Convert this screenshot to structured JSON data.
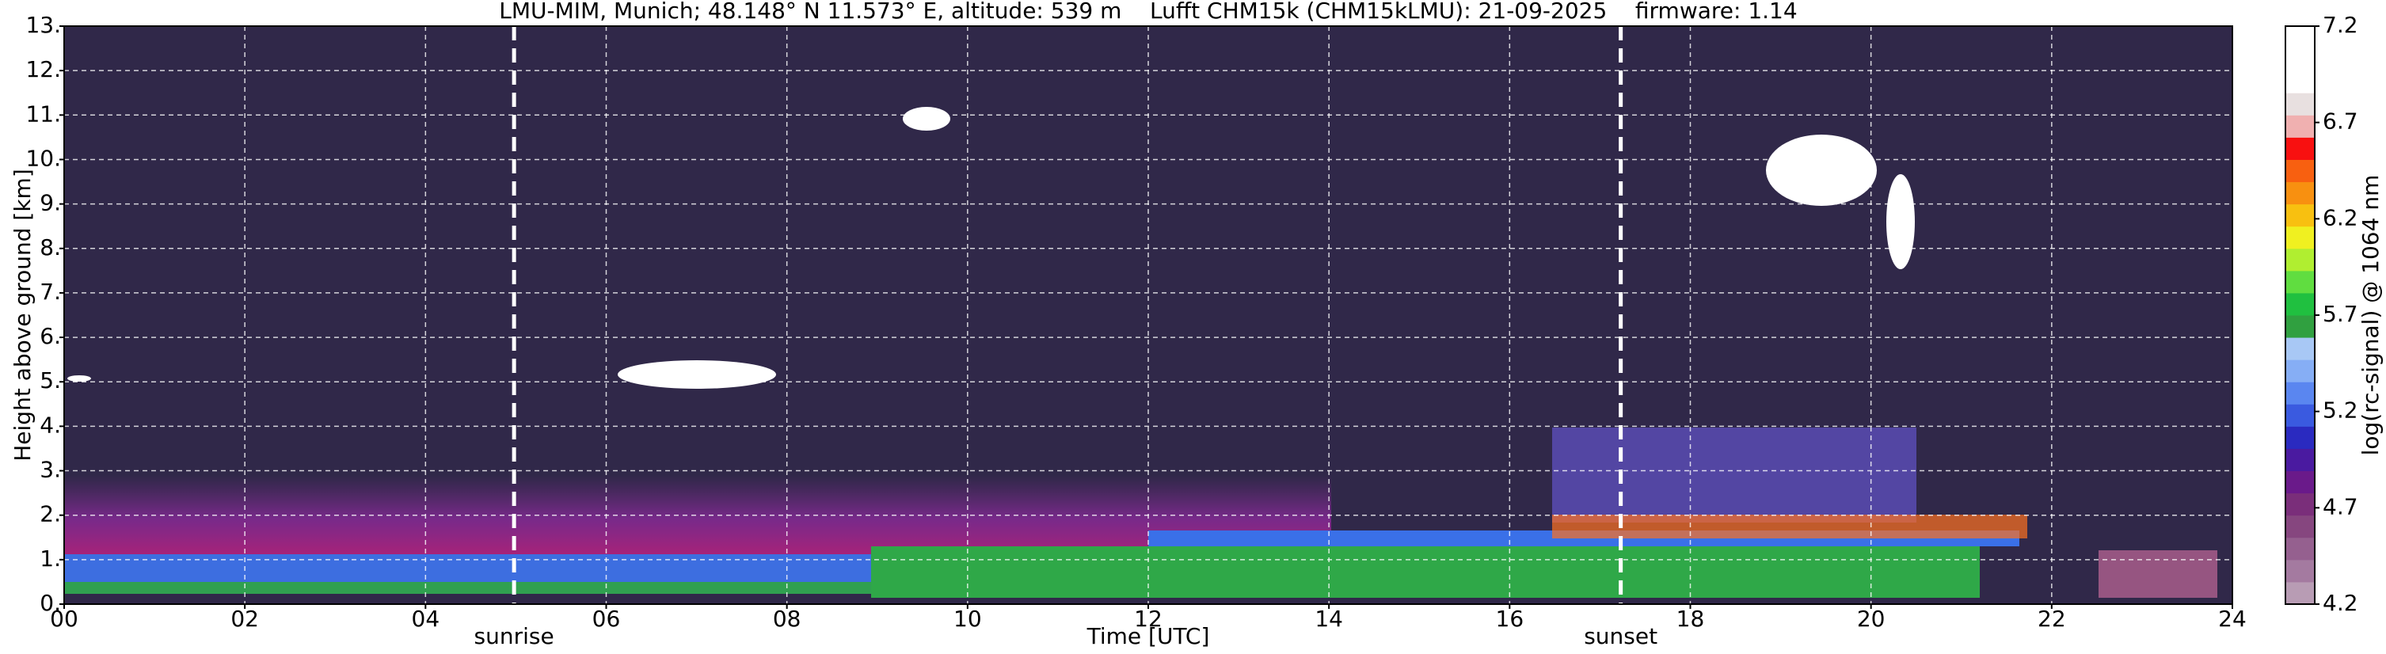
{
  "chart_data": {
    "type": "heatmap",
    "title": "LMU-MIM, Munich; 48.148° N 11.573° E, altitude: 539 m    Lufft CHM15k (CHM15kLMU): 21-09-2025    firmware: 1.14",
    "x_label": "Time [UTC]",
    "y_label": "Height above ground [km]",
    "colorbar_label": "log(rc-signal) @ 1064 nm",
    "xlim": [
      0,
      24
    ],
    "xticks": [
      {
        "value": 0,
        "label": "00"
      },
      {
        "value": 2,
        "label": "02"
      },
      {
        "value": 4,
        "label": "04"
      },
      {
        "value": 6,
        "label": "06"
      },
      {
        "value": 8,
        "label": "08"
      },
      10,
      12,
      14,
      16,
      18,
      20,
      22,
      24
    ],
    "ylim": [
      0,
      13
    ],
    "yticks": [
      {
        "value": 0,
        "label": "0."
      },
      {
        "value": 1,
        "label": "1."
      },
      {
        "value": 2,
        "label": "2."
      },
      {
        "value": 3,
        "label": "3."
      },
      {
        "value": 4,
        "label": "4."
      },
      {
        "value": 5,
        "label": "5."
      },
      {
        "value": 6,
        "label": "6."
      },
      {
        "value": 7,
        "label": "7."
      },
      {
        "value": 8,
        "label": "8."
      },
      {
        "value": 9,
        "label": "9."
      },
      {
        "value": 10,
        "label": "10."
      },
      {
        "value": 11,
        "label": "11."
      },
      {
        "value": 12,
        "label": "12."
      },
      {
        "value": 13,
        "label": "13."
      }
    ],
    "clim": [
      4.2,
      7.2
    ],
    "cticks": [
      4.2,
      4.7,
      5.2,
      5.7,
      6.2,
      6.7,
      7.2
    ],
    "colormap": [
      "#b89cb4",
      "#a47aa0",
      "#95608f",
      "#86467f",
      "#7a2e7a",
      "#6a1a8a",
      "#4a1aa0",
      "#2a2ac0",
      "#3a5ae0",
      "#5a86f0",
      "#86aef5",
      "#a8c8f5",
      "#30a040",
      "#20c040",
      "#60dd40",
      "#b0ee30",
      "#f0f020",
      "#f8c010",
      "#f89010",
      "#f86010",
      "#f81010",
      "#f0b0b0",
      "#e8e0e0",
      "#ffffff",
      "#ffffff",
      "#ffffff"
    ],
    "grid": true,
    "annotations": [
      {
        "text": "sunrise",
        "x": 4.98
      },
      {
        "text": "sunset",
        "x": 17.23
      }
    ]
  }
}
